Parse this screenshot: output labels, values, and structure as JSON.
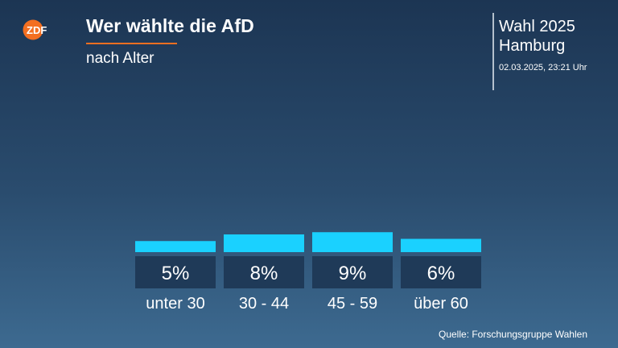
{
  "header": {
    "logo_text": "ZDF",
    "title": "Wer wählte die AfD",
    "subtitle": "nach Alter"
  },
  "election": {
    "name": "Wahl 2025",
    "region": "Hamburg",
    "timestamp": "02.03.2025, 23:21 Uhr"
  },
  "source": "Quelle: Forschungsgruppe Wahlen",
  "colors": {
    "bar": "#1ad1ff",
    "value_box": "#1f3a58",
    "accent": "#f36f21"
  },
  "chart_data": {
    "type": "bar",
    "categories": [
      "unter 30",
      "30 - 44",
      "45 - 59",
      "über 60"
    ],
    "values": [
      5,
      8,
      9,
      6
    ],
    "value_labels": [
      "5%",
      "8%",
      "9%",
      "6%"
    ],
    "unit": "%"
  }
}
